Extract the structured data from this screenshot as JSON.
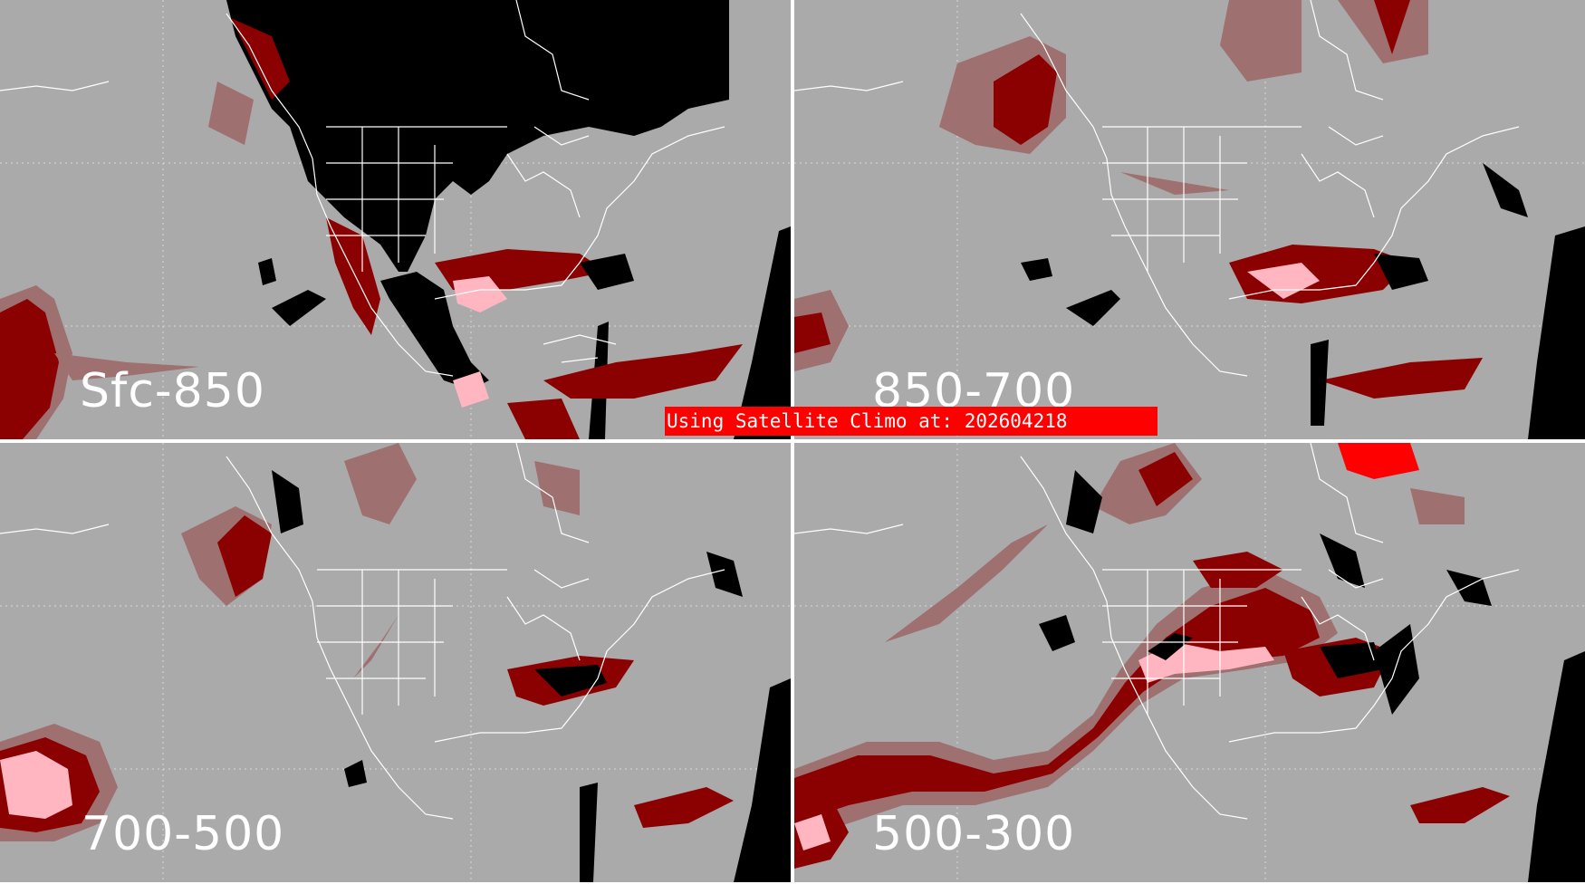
{
  "panels": [
    {
      "label": "Sfc-850"
    },
    {
      "label": "850-700"
    },
    {
      "label": "700-500"
    },
    {
      "label": "500-300"
    }
  ],
  "banner": {
    "text": "Using Satellite Climo at: 202604218"
  },
  "colors": {
    "background": "#aaaaaa",
    "no_data": "#000000",
    "low": "#9e7070",
    "medium": "#8b0000",
    "high": "#ffb6c1",
    "max": "#ff0000",
    "borders": "#ffffff",
    "banner": "#ff0000"
  }
}
